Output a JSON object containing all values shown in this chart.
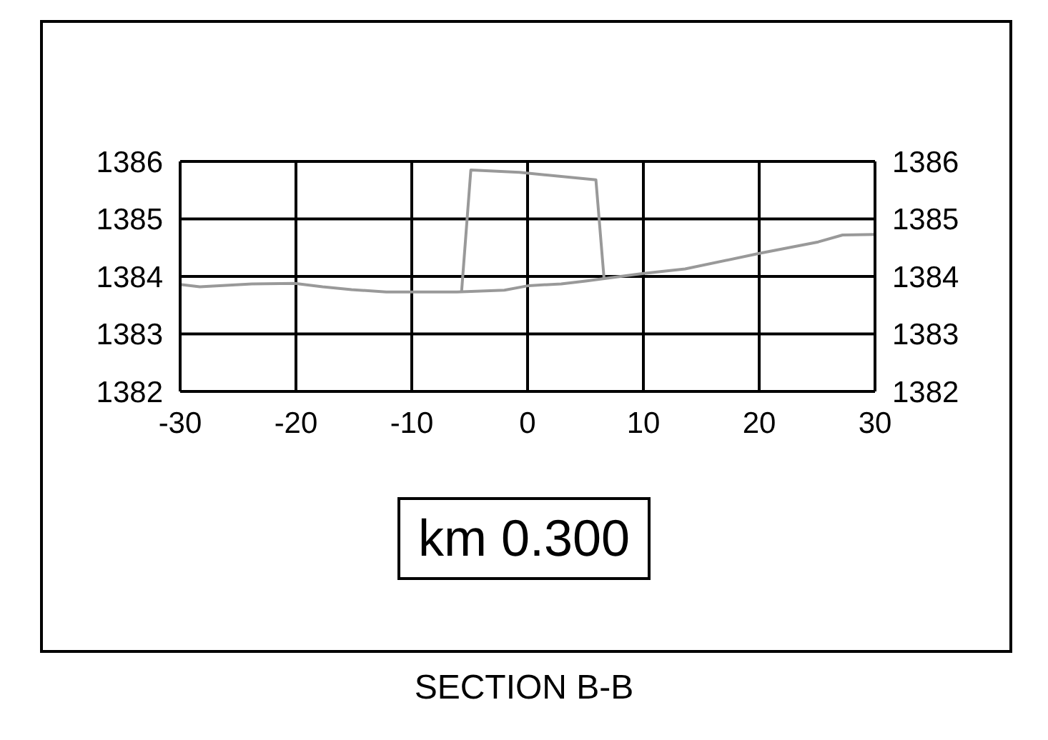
{
  "chart_data": {
    "type": "line",
    "title": "SECTION B-B",
    "annotations": [
      "km 0.300"
    ],
    "series": [
      {
        "color": "#999999",
        "x": [
          -30,
          -28.3,
          -23.8,
          -20.1,
          -17.7,
          -15.2,
          -12.2,
          -6.1,
          -2,
          0.1,
          2.9,
          5,
          9.9,
          13.6,
          20,
          25.1,
          27.2,
          29.9
        ],
        "values": [
          1383.86,
          1383.82,
          1383.87,
          1383.88,
          1383.82,
          1383.77,
          1383.73,
          1383.73,
          1383.76,
          1383.84,
          1383.87,
          1383.92,
          1384.05,
          1384.13,
          1384.4,
          1384.6,
          1384.72,
          1384.73
        ]
      },
      {
        "color": "#999999",
        "x": [
          -5.7,
          -4.9,
          -0.7,
          5.9,
          6.6
        ],
        "values": [
          1383.73,
          1385.85,
          1385.81,
          1385.68,
          1383.97
        ]
      }
    ],
    "xlim": [
      -30,
      30
    ],
    "xticks": [
      -30,
      -20,
      -10,
      0,
      10,
      20,
      30
    ],
    "ylim": [
      1382,
      1386
    ],
    "yticks": [
      1382,
      1383,
      1384,
      1385,
      1386
    ],
    "y2lim": [
      1382,
      1386
    ],
    "y2ticks": [
      1382,
      1383,
      1384,
      1385,
      1386
    ],
    "grid": true,
    "legend": false,
    "marker": "none",
    "line_style": "solid"
  }
}
